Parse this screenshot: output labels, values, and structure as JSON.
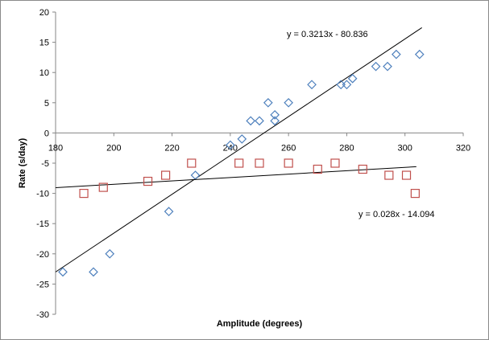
{
  "chart_data": {
    "type": "scatter",
    "title": "",
    "xlabel": "Amplitude (degrees)",
    "ylabel": "Rate (s/day)",
    "xlim": [
      180,
      320
    ],
    "ylim": [
      -30,
      20
    ],
    "xticks": [
      180,
      200,
      220,
      240,
      260,
      280,
      300,
      320
    ],
    "yticks": [
      -30,
      -25,
      -20,
      -15,
      -10,
      -5,
      0,
      5,
      10,
      15,
      20
    ],
    "grid": false,
    "legend": "none",
    "series": [
      {
        "marker": "diamond",
        "color": "#4f81bd",
        "points": [
          [
            182.5,
            -23
          ],
          [
            193,
            -23
          ],
          [
            198.6,
            -20
          ],
          [
            218.9,
            -13
          ],
          [
            228,
            -7
          ],
          [
            240,
            -2
          ],
          [
            244,
            -1
          ],
          [
            247,
            2
          ],
          [
            250,
            2
          ],
          [
            253,
            5
          ],
          [
            255.3,
            3
          ],
          [
            255.3,
            2
          ],
          [
            260,
            5
          ],
          [
            268,
            8
          ],
          [
            278,
            8
          ],
          [
            280,
            8
          ],
          [
            282,
            9
          ],
          [
            290,
            11
          ],
          [
            294,
            11
          ],
          [
            297,
            13
          ],
          [
            305,
            13
          ]
        ],
        "trendline": {
          "slope": 0.3213,
          "intercept": -80.836,
          "x_range": [
            180,
            305.8
          ],
          "label": "y = 0.3213x - 80.836"
        }
      },
      {
        "marker": "square",
        "color": "#c0504d",
        "points": [
          [
            189.7,
            -10
          ],
          [
            196.4,
            -9
          ],
          [
            211.7,
            -8
          ],
          [
            217.8,
            -7
          ],
          [
            226.7,
            -5
          ],
          [
            243,
            -5
          ],
          [
            250,
            -5
          ],
          [
            260,
            -5
          ],
          [
            270,
            -6
          ],
          [
            276,
            -5
          ],
          [
            285.5,
            -6
          ],
          [
            294.5,
            -7
          ],
          [
            300.5,
            -7
          ],
          [
            303.5,
            -10
          ]
        ],
        "trendline": {
          "slope": 0.028,
          "intercept": -14.094,
          "x_range": [
            180,
            303.9
          ],
          "label": "y = 0.028x - 14.094"
        }
      }
    ]
  }
}
